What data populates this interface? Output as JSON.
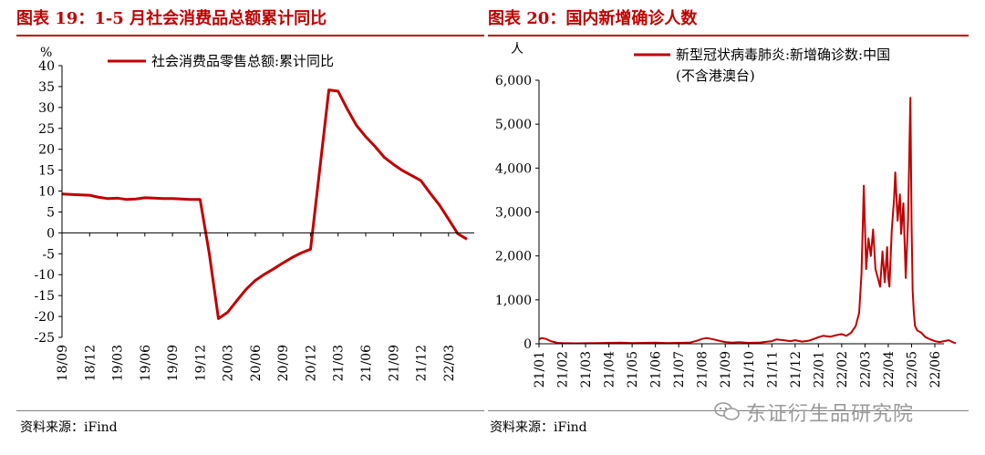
{
  "left": {
    "title": "图表 19：1-5 月社会消费品总额累计同比",
    "source": "资料来源：iFind",
    "chart_data": {
      "type": "line",
      "ylabel": "%",
      "ylim": [
        -25,
        40
      ],
      "yticks": [
        40,
        35,
        30,
        25,
        20,
        15,
        10,
        5,
        0,
        -5,
        -10,
        -15,
        -20,
        -25
      ],
      "xticks": [
        "18/09",
        "18/12",
        "19/03",
        "19/06",
        "19/09",
        "19/12",
        "20/03",
        "20/06",
        "20/09",
        "20/12",
        "21/03",
        "21/06",
        "21/09",
        "21/12",
        "22/03"
      ],
      "legend": "社会消费品零售总额:累计同比",
      "legend_position": "top-right",
      "color": "#c00000",
      "series": [
        {
          "x": [
            "18/09",
            "18/10",
            "18/11",
            "18/12",
            "19/01",
            "19/02",
            "19/03",
            "19/04",
            "19/05",
            "19/06",
            "19/07",
            "19/08",
            "19/09",
            "19/10",
            "19/11",
            "19/12",
            "20/01",
            "20/02",
            "20/03",
            "20/04",
            "20/05",
            "20/06",
            "20/07",
            "20/08",
            "20/09",
            "20/10",
            "20/11",
            "20/12",
            "21/01",
            "21/02",
            "21/03",
            "21/04",
            "21/05",
            "21/06",
            "21/07",
            "21/08",
            "21/09",
            "21/10",
            "21/11",
            "21/12",
            "22/01",
            "22/02",
            "22/03",
            "22/04",
            "22/05"
          ],
          "values": [
            9.3,
            9.2,
            9.1,
            9.0,
            8.5,
            8.2,
            8.3,
            8.0,
            8.1,
            8.4,
            8.3,
            8.2,
            8.2,
            8.1,
            8.0,
            8.0,
            -5,
            -20.5,
            -19.0,
            -16.2,
            -13.5,
            -11.4,
            -9.9,
            -8.6,
            -7.2,
            -5.9,
            -4.8,
            -3.9,
            15,
            34.2,
            33.9,
            29.6,
            25.7,
            23.0,
            20.7,
            18.1,
            16.4,
            14.9,
            13.7,
            12.5,
            9.5,
            6.7,
            3.3,
            -0.2,
            -1.5
          ]
        }
      ]
    }
  },
  "right": {
    "title": "图表 20：国内新增确诊人数",
    "source": "资料来源：iFind",
    "chart_data": {
      "type": "line",
      "ylabel": "人",
      "ylim": [
        0,
        6000
      ],
      "yticks": [
        "6,000",
        "5,000",
        "4,000",
        "3,000",
        "2,000",
        "1,000",
        "0"
      ],
      "xticks": [
        "21/01",
        "21/02",
        "21/03",
        "21/04",
        "21/05",
        "21/06",
        "21/07",
        "21/08",
        "21/09",
        "21/10",
        "21/11",
        "21/12",
        "22/01",
        "22/02",
        "22/03",
        "22/04",
        "22/05",
        "22/06"
      ],
      "legend_line1": "新型冠状病毒肺炎:新增确诊数:中国",
      "legend_line2": "(不含港澳台)",
      "legend_position": "top-right",
      "color": "#c00000",
      "series": [
        {
          "x": [
            0,
            0.1,
            0.3,
            0.5,
            0.8,
            1.0,
            1.5,
            2.0,
            2.5,
            3.0,
            3.5,
            4.0,
            4.5,
            5.0,
            5.5,
            6.0,
            6.5,
            6.8,
            7.0,
            7.2,
            7.5,
            7.8,
            8.0,
            8.3,
            8.6,
            9.0,
            9.5,
            10.0,
            10.2,
            10.5,
            10.8,
            11.0,
            11.3,
            11.6,
            12.0,
            12.2,
            12.5,
            12.8,
            13.0,
            13.2,
            13.4,
            13.6,
            13.75,
            13.85,
            13.95,
            14.05,
            14.15,
            14.25,
            14.35,
            14.45,
            14.55,
            14.65,
            14.75,
            14.85,
            14.95,
            15.0,
            15.05,
            15.15,
            15.25,
            15.3,
            15.4,
            15.5,
            15.55,
            15.65,
            15.75,
            15.85,
            15.95,
            16.0,
            16.05,
            16.1,
            16.15,
            16.25,
            16.4,
            16.6,
            16.8,
            17.0,
            17.2,
            17.4,
            17.6,
            17.8,
            17.9
          ],
          "values": [
            100,
            130,
            110,
            60,
            20,
            15,
            10,
            12,
            15,
            20,
            25,
            15,
            20,
            25,
            15,
            20,
            30,
            70,
            110,
            130,
            100,
            60,
            40,
            25,
            35,
            20,
            30,
            60,
            100,
            80,
            60,
            80,
            50,
            70,
            150,
            180,
            160,
            200,
            220,
            180,
            250,
            400,
            700,
            1600,
            3600,
            1700,
            2400,
            2000,
            2600,
            1700,
            1500,
            1300,
            2100,
            1400,
            2200,
            1500,
            1300,
            2600,
            3300,
            3900,
            2800,
            3400,
            2500,
            3200,
            1500,
            2800,
            5600,
            2700,
            1200,
            700,
            400,
            300,
            260,
            150,
            100,
            60,
            40,
            60,
            80,
            30,
            10
          ]
        }
      ]
    }
  },
  "watermark": "东证衍生品研究院"
}
